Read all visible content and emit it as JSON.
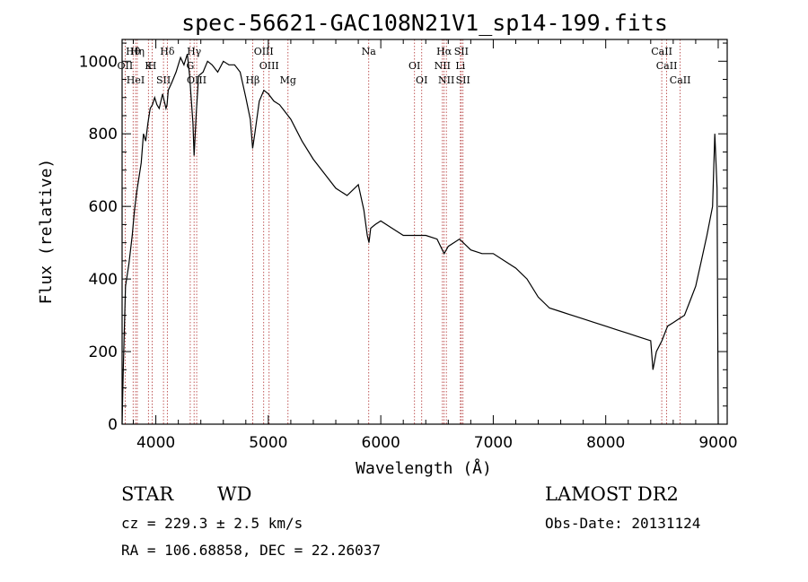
{
  "chart_data": {
    "type": "line",
    "title": "spec-56621-GAC108N21V1_sp14-199.fits",
    "xlabel": "Wavelength (Å)",
    "ylabel": "Flux (relative)",
    "xlim": [
      3700,
      9080
    ],
    "ylim": [
      0,
      1060
    ],
    "xticks": [
      4000,
      5000,
      6000,
      7000,
      8000,
      9000
    ],
    "yticks": [
      0,
      200,
      400,
      600,
      800,
      1000
    ],
    "series": [
      {
        "x": [
          3700,
          3710,
          3730,
          3760,
          3790,
          3810,
          3830,
          3850,
          3870,
          3890,
          3910,
          3930,
          3950,
          3970,
          3990,
          4010,
          4030,
          4060,
          4090,
          4100,
          4110,
          4140,
          4180,
          4220,
          4250,
          4280,
          4300,
          4330,
          4340,
          4360,
          4380,
          4420,
          4460,
          4500,
          4550,
          4600,
          4650,
          4700,
          4750,
          4800,
          4840,
          4861,
          4880,
          4920,
          4960,
          5000,
          5050,
          5100,
          5150,
          5200,
          5300,
          5400,
          5500,
          5600,
          5700,
          5800,
          5850,
          5880,
          5895,
          5910,
          5950,
          6000,
          6100,
          6200,
          6300,
          6400,
          6500,
          6563,
          6600,
          6700,
          6800,
          6900,
          7000,
          7100,
          7200,
          7300,
          7400,
          7500,
          7600,
          7700,
          7800,
          7900,
          8000,
          8100,
          8200,
          8300,
          8400,
          8420,
          8450,
          8500,
          8550,
          8600,
          8650,
          8700,
          8750,
          8800,
          8850,
          8900,
          8950,
          8970,
          8990,
          9000
        ],
        "y": [
          0,
          150,
          380,
          440,
          520,
          590,
          640,
          680,
          720,
          800,
          780,
          830,
          870,
          880,
          900,
          880,
          870,
          910,
          870,
          880,
          920,
          940,
          970,
          1010,
          990,
          1020,
          960,
          830,
          740,
          860,
          960,
          970,
          1000,
          990,
          970,
          1000,
          990,
          990,
          970,
          900,
          840,
          760,
          800,
          890,
          920,
          910,
          890,
          880,
          860,
          840,
          780,
          730,
          690,
          650,
          630,
          660,
          590,
          520,
          500,
          540,
          550,
          560,
          540,
          520,
          520,
          520,
          510,
          470,
          490,
          510,
          480,
          470,
          470,
          450,
          430,
          400,
          350,
          320,
          310,
          300,
          290,
          280,
          270,
          260,
          250,
          240,
          230,
          150,
          200,
          230,
          270,
          280,
          290,
          300,
          340,
          380,
          450,
          520,
          600,
          800,
          650,
          0
        ]
      }
    ],
    "line_markers": [
      {
        "name": "Hθ",
        "wl": 3798
      },
      {
        "name": "OII",
        "wl": 3727
      },
      {
        "name": "HeI",
        "wl": 3820
      },
      {
        "name": "Hη",
        "wl": 3835
      },
      {
        "name": "K",
        "wl": 3934
      },
      {
        "name": "SII",
        "wl": 4068
      },
      {
        "name": "Hδ",
        "wl": 4102
      },
      {
        "name": "H",
        "wl": 3968
      },
      {
        "name": "OIII",
        "wl": 4363
      },
      {
        "name": "Hγ",
        "wl": 4340
      },
      {
        "name": "G",
        "wl": 4306
      },
      {
        "name": "Hβ",
        "wl": 4861
      },
      {
        "name": "OIII",
        "wl": 4959
      },
      {
        "name": "OIII",
        "wl": 5007
      },
      {
        "name": "Mg",
        "wl": 5175
      },
      {
        "name": "Na",
        "wl": 5893
      },
      {
        "name": "OI",
        "wl": 6300
      },
      {
        "name": "OI",
        "wl": 6364
      },
      {
        "name": "Hα",
        "wl": 6563
      },
      {
        "name": "NII",
        "wl": 6548
      },
      {
        "name": "NII",
        "wl": 6583
      },
      {
        "name": "SII",
        "wl": 6716
      },
      {
        "name": "Li",
        "wl": 6708
      },
      {
        "name": "SII",
        "wl": 6731
      },
      {
        "name": "CaII",
        "wl": 8498
      },
      {
        "name": "CaII",
        "wl": 8542
      },
      {
        "name": "CaII",
        "wl": 8662
      }
    ]
  },
  "info": {
    "class_label": "STAR",
    "subclass_label": "WD",
    "survey": "LAMOST DR2",
    "cz": "cz = 229.3 ± 2.5 km/s",
    "obs_date": "Obs-Date: 20131124",
    "coords": "RA = 106.68858, DEC =  22.26037"
  }
}
